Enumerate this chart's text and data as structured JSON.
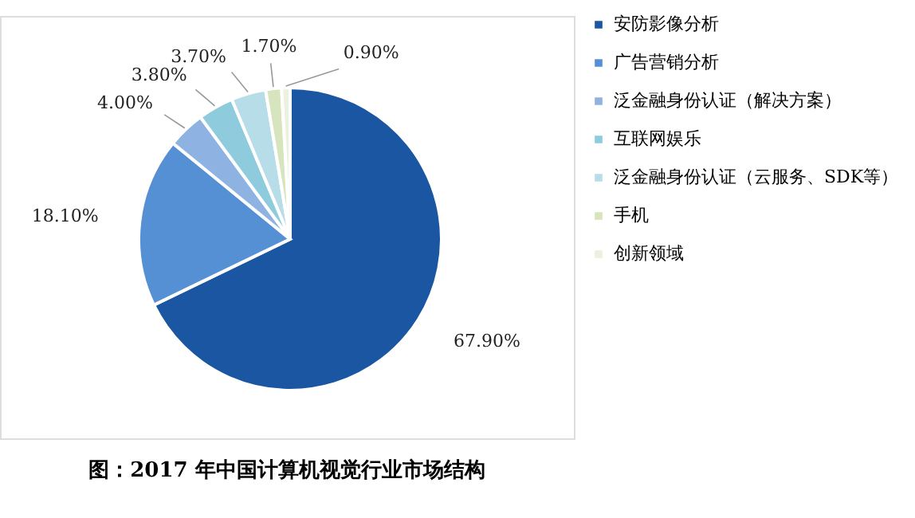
{
  "chart_data": {
    "type": "pie",
    "title": "图：2017 年中国计算机视觉行业市场结构",
    "categories": [
      "安防影像分析",
      "广告营销分析",
      "泛金融身份认证（解决方案）",
      "互联网娱乐",
      "泛金融身份认证（云服务、SDK等）",
      "手机",
      "创新领域"
    ],
    "values": [
      67.9,
      18.1,
      4.0,
      3.8,
      3.7,
      1.7,
      0.9
    ],
    "value_labels": [
      "67.90%",
      "18.10%",
      "4.00%",
      "3.80%",
      "3.70%",
      "1.70%",
      "0.90%"
    ],
    "colors": [
      "#1a56a2",
      "#5590d4",
      "#8eb3e2",
      "#8ecbdc",
      "#b6dde8",
      "#d6e5bd",
      "#ebf1de"
    ],
    "legend": "right"
  }
}
